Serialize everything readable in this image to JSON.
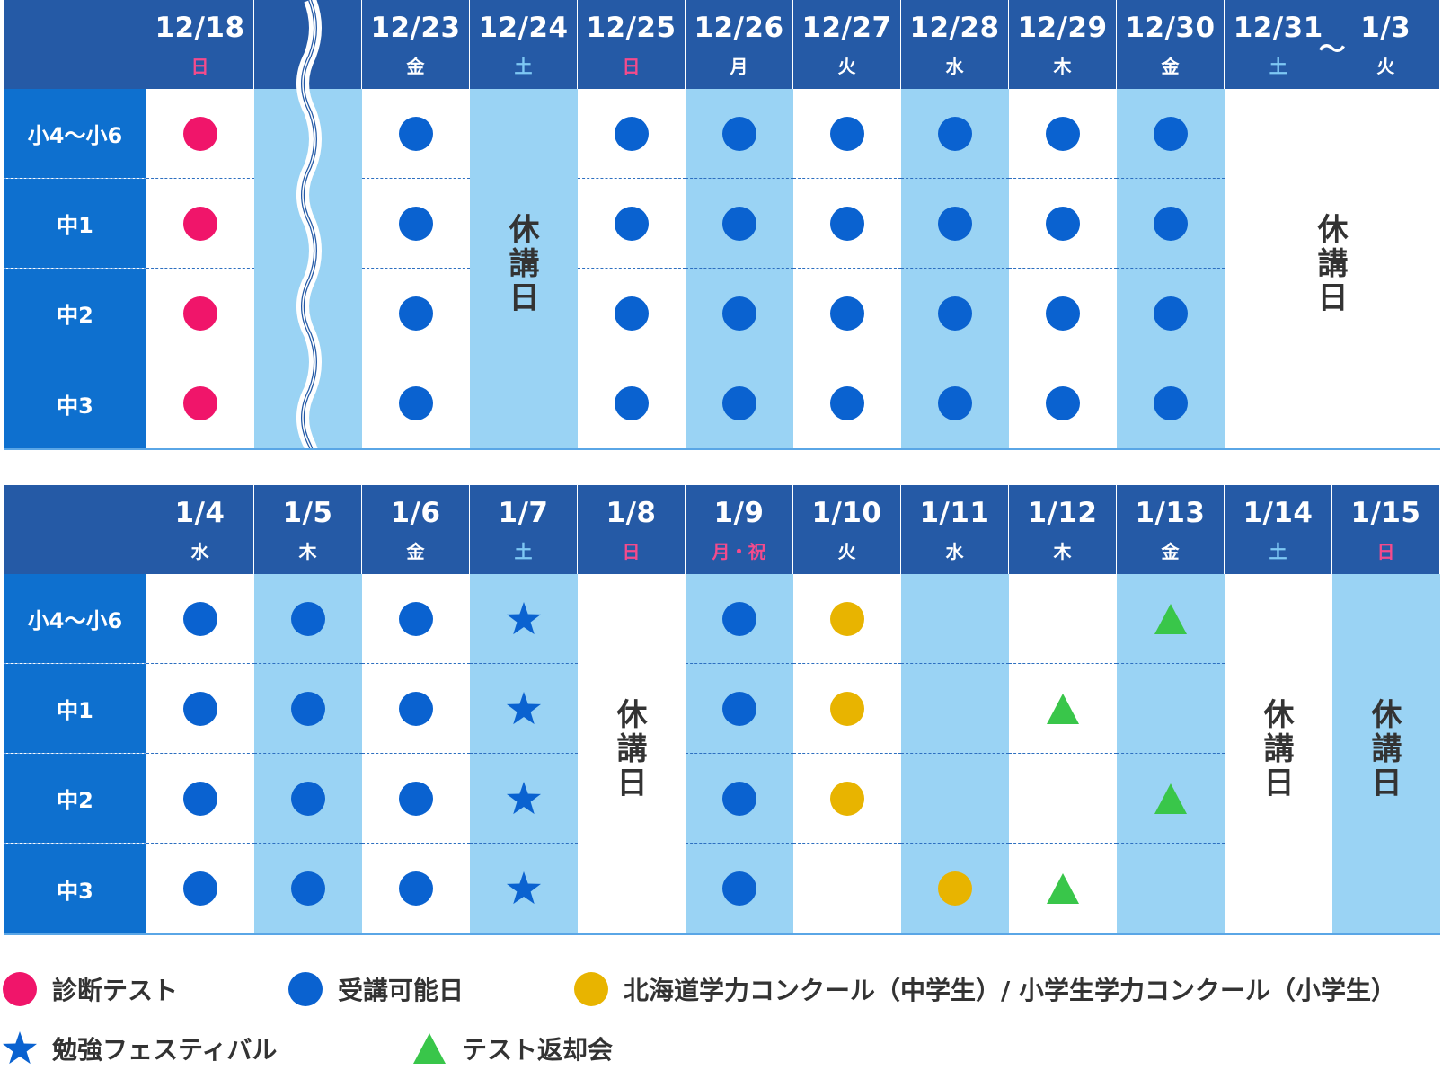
{
  "colors": {
    "header_bg": "#255aa6",
    "row_label_bg": "#0e70cf",
    "light_col": "#9ad3f4",
    "white_col": "#ffffff",
    "sunday_text": "#f44b8c",
    "saturday_text": "#7ec8f4",
    "diagnostic": "#f0156a",
    "available": "#0a62d0",
    "contest": "#e8b400",
    "festival": "#0a62d0",
    "return": "#39c64a"
  },
  "grades": [
    "小4〜小6",
    "中1",
    "中2",
    "中3"
  ],
  "table1": {
    "columns": [
      {
        "date": "12/18",
        "dow": "日",
        "dow_type": "sun",
        "bg": "white",
        "marks": [
          "diagnostic",
          "diagnostic",
          "diagnostic",
          "diagnostic"
        ]
      },
      {
        "date": "",
        "dow": "",
        "dow_type": "",
        "bg": "light",
        "wave": true,
        "marks": [
          "",
          "",
          "",
          ""
        ]
      },
      {
        "date": "12/23",
        "dow": "金",
        "dow_type": "",
        "bg": "white",
        "marks": [
          "available",
          "available",
          "available",
          "available"
        ]
      },
      {
        "date": "12/24",
        "dow": "土",
        "dow_type": "sat",
        "bg": "light",
        "holiday": true,
        "marks": [
          "",
          "",
          "",
          ""
        ]
      },
      {
        "date": "12/25",
        "dow": "日",
        "dow_type": "sun",
        "bg": "white",
        "marks": [
          "available",
          "available",
          "available",
          "available"
        ]
      },
      {
        "date": "12/26",
        "dow": "月",
        "dow_type": "",
        "bg": "light",
        "marks": [
          "available",
          "available",
          "available",
          "available"
        ]
      },
      {
        "date": "12/27",
        "dow": "火",
        "dow_type": "",
        "bg": "white",
        "marks": [
          "available",
          "available",
          "available",
          "available"
        ]
      },
      {
        "date": "12/28",
        "dow": "水",
        "dow_type": "",
        "bg": "light",
        "marks": [
          "available",
          "available",
          "available",
          "available"
        ]
      },
      {
        "date": "12/29",
        "dow": "木",
        "dow_type": "",
        "bg": "white",
        "marks": [
          "available",
          "available",
          "available",
          "available"
        ]
      },
      {
        "date": "12/30",
        "dow": "金",
        "dow_type": "",
        "bg": "light",
        "marks": [
          "available",
          "available",
          "available",
          "available"
        ]
      },
      {
        "date": "12/31",
        "dow": "土",
        "dow_type": "sat",
        "bg": "white",
        "holiday": true,
        "span": 2,
        "date2": "1/3",
        "dow2": "火",
        "tilde": "〜",
        "marks": [
          "",
          "",
          "",
          ""
        ]
      }
    ]
  },
  "table2": {
    "columns": [
      {
        "date": "1/4",
        "dow": "水",
        "dow_type": "",
        "bg": "white",
        "marks": [
          "available",
          "available",
          "available",
          "available"
        ]
      },
      {
        "date": "1/5",
        "dow": "木",
        "dow_type": "",
        "bg": "light",
        "marks": [
          "available",
          "available",
          "available",
          "available"
        ]
      },
      {
        "date": "1/6",
        "dow": "金",
        "dow_type": "",
        "bg": "white",
        "marks": [
          "available",
          "available",
          "available",
          "available"
        ]
      },
      {
        "date": "1/7",
        "dow": "土",
        "dow_type": "sat",
        "bg": "light",
        "marks": [
          "festival",
          "festival",
          "festival",
          "festival"
        ]
      },
      {
        "date": "1/8",
        "dow": "日",
        "dow_type": "sun",
        "bg": "white",
        "holiday": true,
        "marks": [
          "",
          "",
          "",
          ""
        ]
      },
      {
        "date": "1/9",
        "dow": "月・祝",
        "dow_type": "sun",
        "bg": "light",
        "marks": [
          "available",
          "available",
          "available",
          "available"
        ]
      },
      {
        "date": "1/10",
        "dow": "火",
        "dow_type": "",
        "bg": "white",
        "marks": [
          "contest",
          "contest",
          "contest",
          ""
        ]
      },
      {
        "date": "1/11",
        "dow": "水",
        "dow_type": "",
        "bg": "light",
        "marks": [
          "",
          "",
          "",
          "contest"
        ]
      },
      {
        "date": "1/12",
        "dow": "木",
        "dow_type": "",
        "bg": "white",
        "marks": [
          "",
          "return",
          "",
          "return"
        ]
      },
      {
        "date": "1/13",
        "dow": "金",
        "dow_type": "",
        "bg": "light",
        "marks": [
          "return",
          "",
          "return",
          ""
        ]
      },
      {
        "date": "1/14",
        "dow": "土",
        "dow_type": "sat",
        "bg": "white",
        "holiday": true,
        "marks": [
          "",
          "",
          "",
          ""
        ]
      },
      {
        "date": "1/15",
        "dow": "日",
        "dow_type": "sun",
        "bg": "light",
        "holiday": true,
        "marks": [
          "",
          "",
          "",
          ""
        ]
      }
    ]
  },
  "holiday_text": "休講日",
  "legend": [
    {
      "type": "diagnostic",
      "shape": "circle",
      "label": "診断テスト"
    },
    {
      "type": "available",
      "shape": "circle",
      "label": "受講可能日"
    },
    {
      "type": "contest",
      "shape": "circle",
      "label": "北海道学力コンクール（中学生）/ 小学生学力コンクール（小学生）"
    },
    {
      "type": "festival",
      "shape": "star",
      "label": "勉強フェスティバル"
    },
    {
      "type": "return",
      "shape": "triangle",
      "label": "テスト返却会"
    }
  ]
}
